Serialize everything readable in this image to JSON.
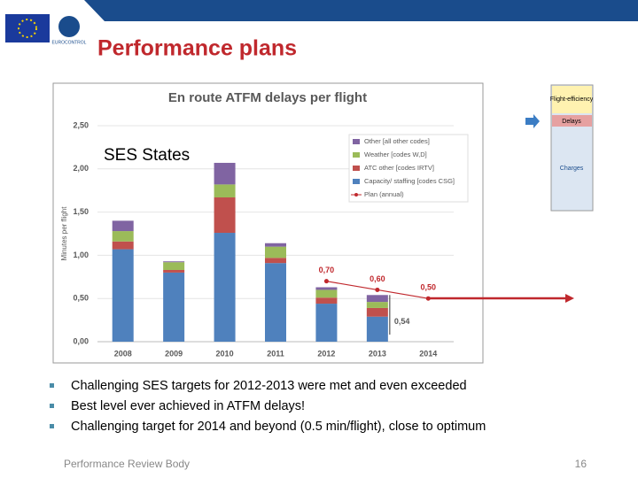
{
  "header": {
    "title": "Performance plans",
    "logo_text": "EUROCONTROL"
  },
  "chart_data": {
    "type": "bar",
    "stacked": true,
    "title": "En route ATFM delays per flight",
    "overlay_text": "SES States",
    "y_label": "Minutes per flight",
    "categories": [
      "2008",
      "2009",
      "2010",
      "2011",
      "2012",
      "2013",
      "2014"
    ],
    "series": [
      {
        "name": "Capacity/ staffing [codes CSG]",
        "color": "#4f81bd",
        "values": [
          1.07,
          0.8,
          1.26,
          0.91,
          0.44,
          0.29,
          null
        ]
      },
      {
        "name": "ATC other [codes IRTV]",
        "color": "#c0504d",
        "values": [
          0.09,
          0.03,
          0.41,
          0.06,
          0.07,
          0.1,
          null
        ]
      },
      {
        "name": "Weather [codes W,D]",
        "color": "#9bbb59",
        "values": [
          0.12,
          0.09,
          0.15,
          0.13,
          0.09,
          0.07,
          null
        ]
      },
      {
        "name": "Other [all other codes]",
        "color": "#8064a2",
        "values": [
          0.12,
          0.01,
          0.25,
          0.04,
          0.03,
          0.08,
          null
        ]
      }
    ],
    "plan": {
      "name": "Plan (annual)",
      "color": "#c0282d",
      "values": [
        null,
        null,
        null,
        null,
        0.7,
        0.6,
        0.5
      ],
      "value_labels": [
        null,
        null,
        null,
        null,
        "0,70",
        "0,60",
        "0,50"
      ]
    },
    "annotations": [
      {
        "label": "0,54",
        "value": 0.54
      }
    ],
    "ylim": [
      0,
      2.5
    ],
    "yticks": [
      {
        "value": 0,
        "label": "0,00"
      },
      {
        "value": 0.5,
        "label": "0,50"
      },
      {
        "value": 1,
        "label": "1,00"
      },
      {
        "value": 1.5,
        "label": "1,50"
      },
      {
        "value": 2,
        "label": "2,00"
      },
      {
        "value": 2.5,
        "label": "2,50"
      }
    ],
    "grid": true,
    "legend": "top-right"
  },
  "side_box": {
    "items": [
      "Flight-efficiency",
      "Delays",
      "Charges"
    ]
  },
  "bullets": [
    "Challenging SES targets for 2012-2013 were met and even exceeded",
    "Best level ever achieved in ATFM delays!",
    "Challenging target for 2014 and beyond (0.5 min/flight), close to optimum"
  ],
  "footer": {
    "text": "Performance Review Body",
    "page": "16"
  }
}
